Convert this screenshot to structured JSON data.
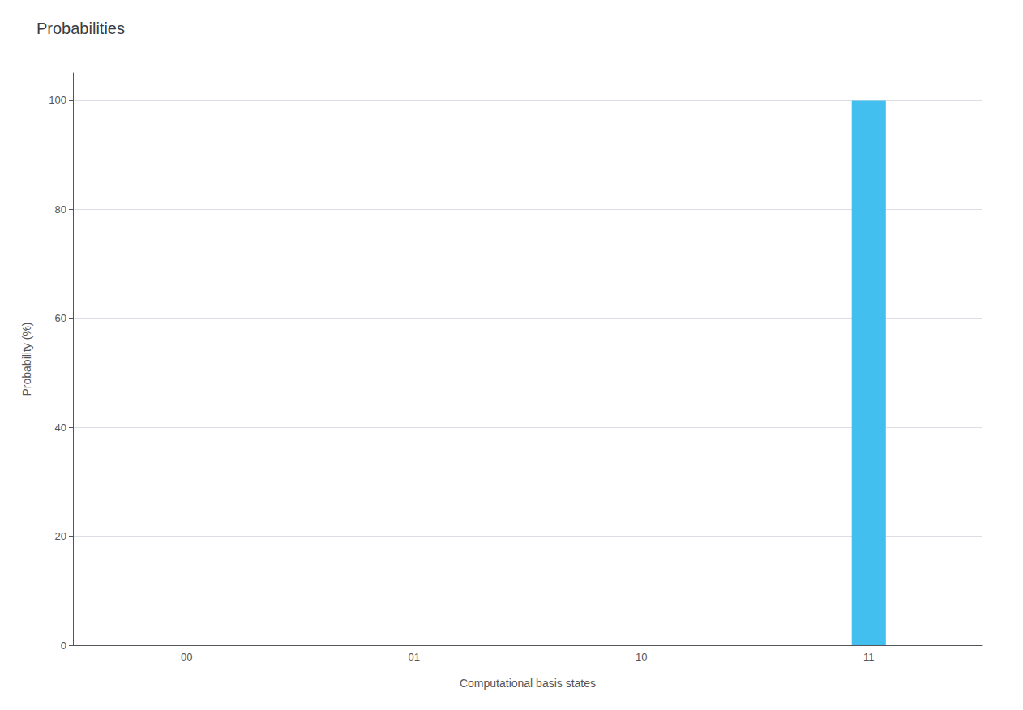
{
  "chart_data": {
    "type": "bar",
    "title": "Probabilities",
    "xlabel": "Computational basis states",
    "ylabel": "Probability (%)",
    "categories": [
      "00",
      "01",
      "10",
      "11"
    ],
    "values": [
      0,
      0,
      0,
      100
    ],
    "color": "#42BFEF",
    "ylim": [
      0,
      105
    ],
    "yticks": [
      0,
      20,
      40,
      60,
      80,
      100
    ],
    "grid": true
  }
}
